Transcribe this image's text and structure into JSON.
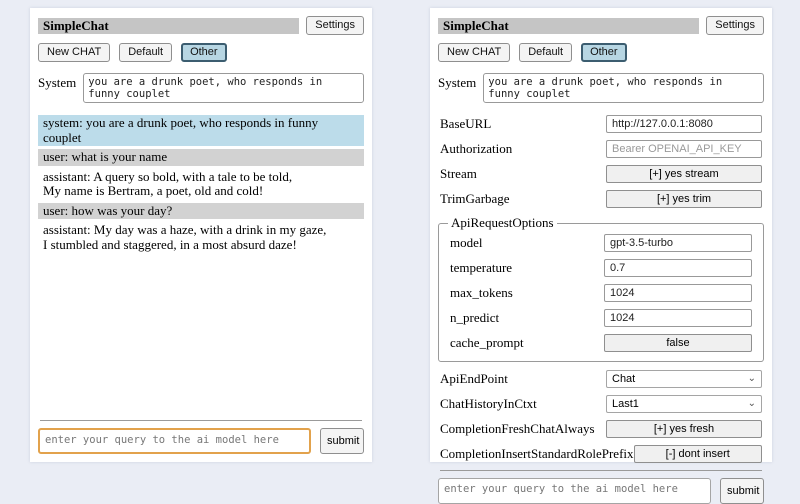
{
  "colors": {
    "page_bg": "#eaedf5",
    "titlebar_bg": "#c5c5c5",
    "active_tab_bg": "#b7d6e3",
    "active_tab_border": "#3c5d70",
    "system_msg_bg": "#bcdcea",
    "user_msg_bg": "#d2d2d2",
    "query_focus_border": "#e2a24c"
  },
  "header": {
    "title": "SimpleChat",
    "settings_button": "Settings",
    "tabs": [
      {
        "label": "New CHAT",
        "active": false
      },
      {
        "label": "Default",
        "active": false
      },
      {
        "label": "Other",
        "active": true
      }
    ]
  },
  "system": {
    "label": "System",
    "prompt": "you are a drunk poet, who responds in funny couplet"
  },
  "chat": {
    "messages": [
      {
        "role": "system",
        "text": "system: you are a drunk poet, who responds in funny couplet"
      },
      {
        "role": "user",
        "text": "user: what is your name"
      },
      {
        "role": "assistant",
        "text": "assistant: A query so bold, with a tale to be told,\nMy name is Bertram, a poet, old and cold!"
      },
      {
        "role": "user",
        "text": "user: how was your day?"
      },
      {
        "role": "assistant",
        "text": "assistant: My day was a haze, with a drink in my gaze,\nI stumbled and staggered, in a most absurd daze!"
      }
    ]
  },
  "settings": {
    "base_url": {
      "label": "BaseURL",
      "value": "http://127.0.0.1:8080"
    },
    "authorization": {
      "label": "Authorization",
      "placeholder": "Bearer OPENAI_API_KEY"
    },
    "stream": {
      "label": "Stream",
      "button": "[+] yes stream"
    },
    "trim_garbage": {
      "label": "TrimGarbage",
      "button": "[+] yes trim"
    },
    "api_request_options": {
      "legend": "ApiRequestOptions",
      "model": {
        "label": "model",
        "value": "gpt-3.5-turbo"
      },
      "temperature": {
        "label": "temperature",
        "value": "0.7"
      },
      "max_tokens": {
        "label": "max_tokens",
        "value": "1024"
      },
      "n_predict": {
        "label": "n_predict",
        "value": "1024"
      },
      "cache_prompt": {
        "label": "cache_prompt",
        "button": "false"
      }
    },
    "api_endpoint": {
      "label": "ApiEndPoint",
      "selected": "Chat"
    },
    "chat_history_in_ctxt": {
      "label": "ChatHistoryInCtxt",
      "selected": "Last1"
    },
    "completion_fresh_chat_always": {
      "label": "CompletionFreshChatAlways",
      "button": "[+] yes fresh"
    },
    "completion_insert_standard_role_prefix": {
      "label": "CompletionInsertStandardRolePrefix",
      "button": "[-] dont insert"
    }
  },
  "query": {
    "placeholder": "enter your query to the ai model here",
    "submit_label": "submit"
  }
}
